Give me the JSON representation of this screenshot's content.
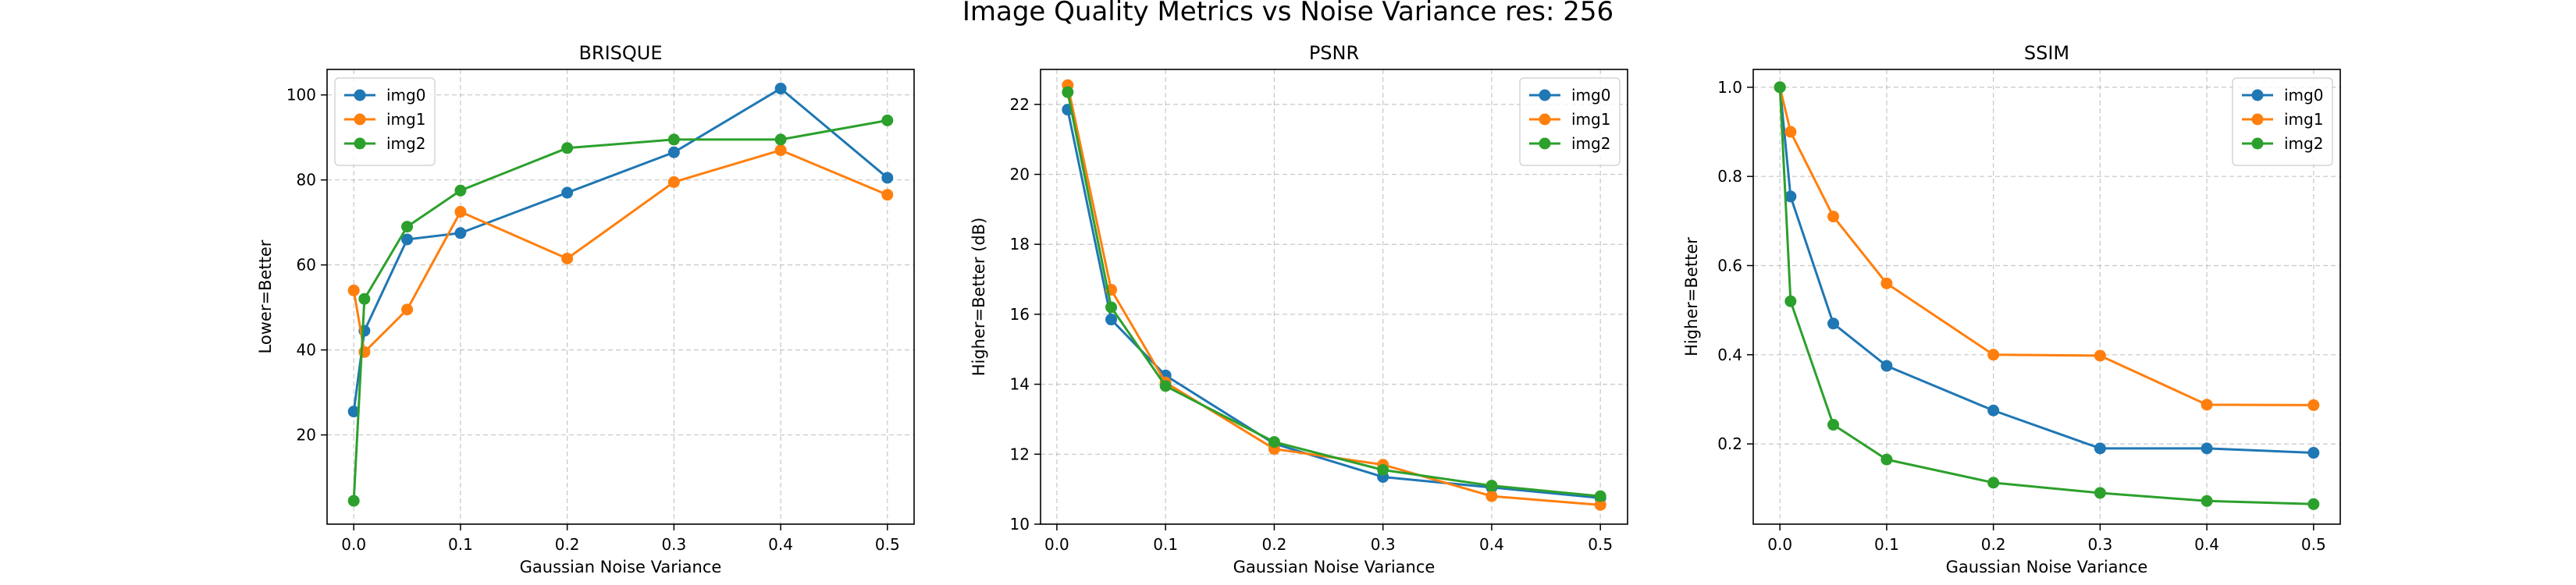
{
  "figure": {
    "suptitle": "Image Quality Metrics vs Noise Variance res: 256"
  },
  "colors": {
    "img0": "#1f77b4",
    "img1": "#ff7f0e",
    "img2": "#2ca02c"
  },
  "chart_data": [
    {
      "type": "line",
      "title": "BRISQUE",
      "xlabel": "Gaussian Noise Variance",
      "ylabel": "Lower=Better",
      "xlim": [
        -0.025,
        0.525
      ],
      "ylim": [
        -1,
        106
      ],
      "xticks": [
        0.0,
        0.1,
        0.2,
        0.3,
        0.4,
        0.5
      ],
      "xtick_labels": [
        "0.0",
        "0.1",
        "0.2",
        "0.3",
        "0.4",
        "0.5"
      ],
      "yticks": [
        20,
        40,
        60,
        80,
        100
      ],
      "ytick_labels": [
        "20",
        "40",
        "60",
        "80",
        "100"
      ],
      "legend_position": "top-left",
      "grid": true,
      "series": [
        {
          "name": "img0",
          "x": [
            0.0,
            0.01,
            0.05,
            0.1,
            0.2,
            0.3,
            0.4,
            0.5
          ],
          "y": [
            25.5,
            44.5,
            66.0,
            67.5,
            77.0,
            86.5,
            101.5,
            80.5
          ]
        },
        {
          "name": "img1",
          "x": [
            0.0,
            0.01,
            0.05,
            0.1,
            0.2,
            0.3,
            0.4,
            0.5
          ],
          "y": [
            54.0,
            39.5,
            49.5,
            72.5,
            61.5,
            79.5,
            87.0,
            76.5
          ]
        },
        {
          "name": "img2",
          "x": [
            0.0,
            0.01,
            0.05,
            0.1,
            0.2,
            0.3,
            0.4,
            0.5
          ],
          "y": [
            4.5,
            52.0,
            69.0,
            77.5,
            87.5,
            89.5,
            89.5,
            94.0
          ]
        }
      ]
    },
    {
      "type": "line",
      "title": "PSNR",
      "xlabel": "Gaussian Noise Variance",
      "ylabel": "Higher=Better (dB)",
      "xlim": [
        -0.015,
        0.525
      ],
      "ylim": [
        10,
        23
      ],
      "xticks": [
        0.0,
        0.1,
        0.2,
        0.3,
        0.4,
        0.5
      ],
      "xtick_labels": [
        "0.0",
        "0.1",
        "0.2",
        "0.3",
        "0.4",
        "0.5"
      ],
      "yticks": [
        10,
        12,
        14,
        16,
        18,
        20,
        22
      ],
      "ytick_labels": [
        "10",
        "12",
        "14",
        "16",
        "18",
        "20",
        "22"
      ],
      "legend_position": "top-right",
      "grid": true,
      "series": [
        {
          "name": "img0",
          "x": [
            0.01,
            0.05,
            0.1,
            0.2,
            0.3,
            0.4,
            0.5
          ],
          "y": [
            21.85,
            15.85,
            14.25,
            12.3,
            11.35,
            11.05,
            10.75
          ]
        },
        {
          "name": "img1",
          "x": [
            0.01,
            0.05,
            0.1,
            0.2,
            0.3,
            0.4,
            0.5
          ],
          "y": [
            22.55,
            16.7,
            14.05,
            12.15,
            11.7,
            10.8,
            10.55
          ]
        },
        {
          "name": "img2",
          "x": [
            0.01,
            0.05,
            0.1,
            0.2,
            0.3,
            0.4,
            0.5
          ],
          "y": [
            22.35,
            16.2,
            13.95,
            12.35,
            11.55,
            11.1,
            10.8
          ]
        }
      ]
    },
    {
      "type": "line",
      "title": "SSIM",
      "xlabel": "Gaussian Noise Variance",
      "ylabel": "Higher=Better",
      "xlim": [
        -0.025,
        0.525
      ],
      "ylim": [
        0.02,
        1.04
      ],
      "xticks": [
        0.0,
        0.1,
        0.2,
        0.3,
        0.4,
        0.5
      ],
      "xtick_labels": [
        "0.0",
        "0.1",
        "0.2",
        "0.3",
        "0.4",
        "0.5"
      ],
      "yticks": [
        0.2,
        0.4,
        0.6,
        0.8,
        1.0
      ],
      "ytick_labels": [
        "0.2",
        "0.4",
        "0.6",
        "0.8",
        "1.0"
      ],
      "legend_position": "top-right",
      "grid": true,
      "series": [
        {
          "name": "img0",
          "x": [
            0.0,
            0.01,
            0.05,
            0.1,
            0.2,
            0.3,
            0.4,
            0.5
          ],
          "y": [
            1.0,
            0.755,
            0.47,
            0.375,
            0.275,
            0.19,
            0.19,
            0.18
          ]
        },
        {
          "name": "img1",
          "x": [
            0.0,
            0.01,
            0.05,
            0.1,
            0.2,
            0.3,
            0.4,
            0.5
          ],
          "y": [
            1.0,
            0.9,
            0.71,
            0.56,
            0.4,
            0.398,
            0.288,
            0.287
          ]
        },
        {
          "name": "img2",
          "x": [
            0.0,
            0.01,
            0.05,
            0.1,
            0.2,
            0.3,
            0.4,
            0.5
          ],
          "y": [
            1.0,
            0.52,
            0.243,
            0.165,
            0.113,
            0.09,
            0.072,
            0.065
          ]
        }
      ]
    }
  ]
}
